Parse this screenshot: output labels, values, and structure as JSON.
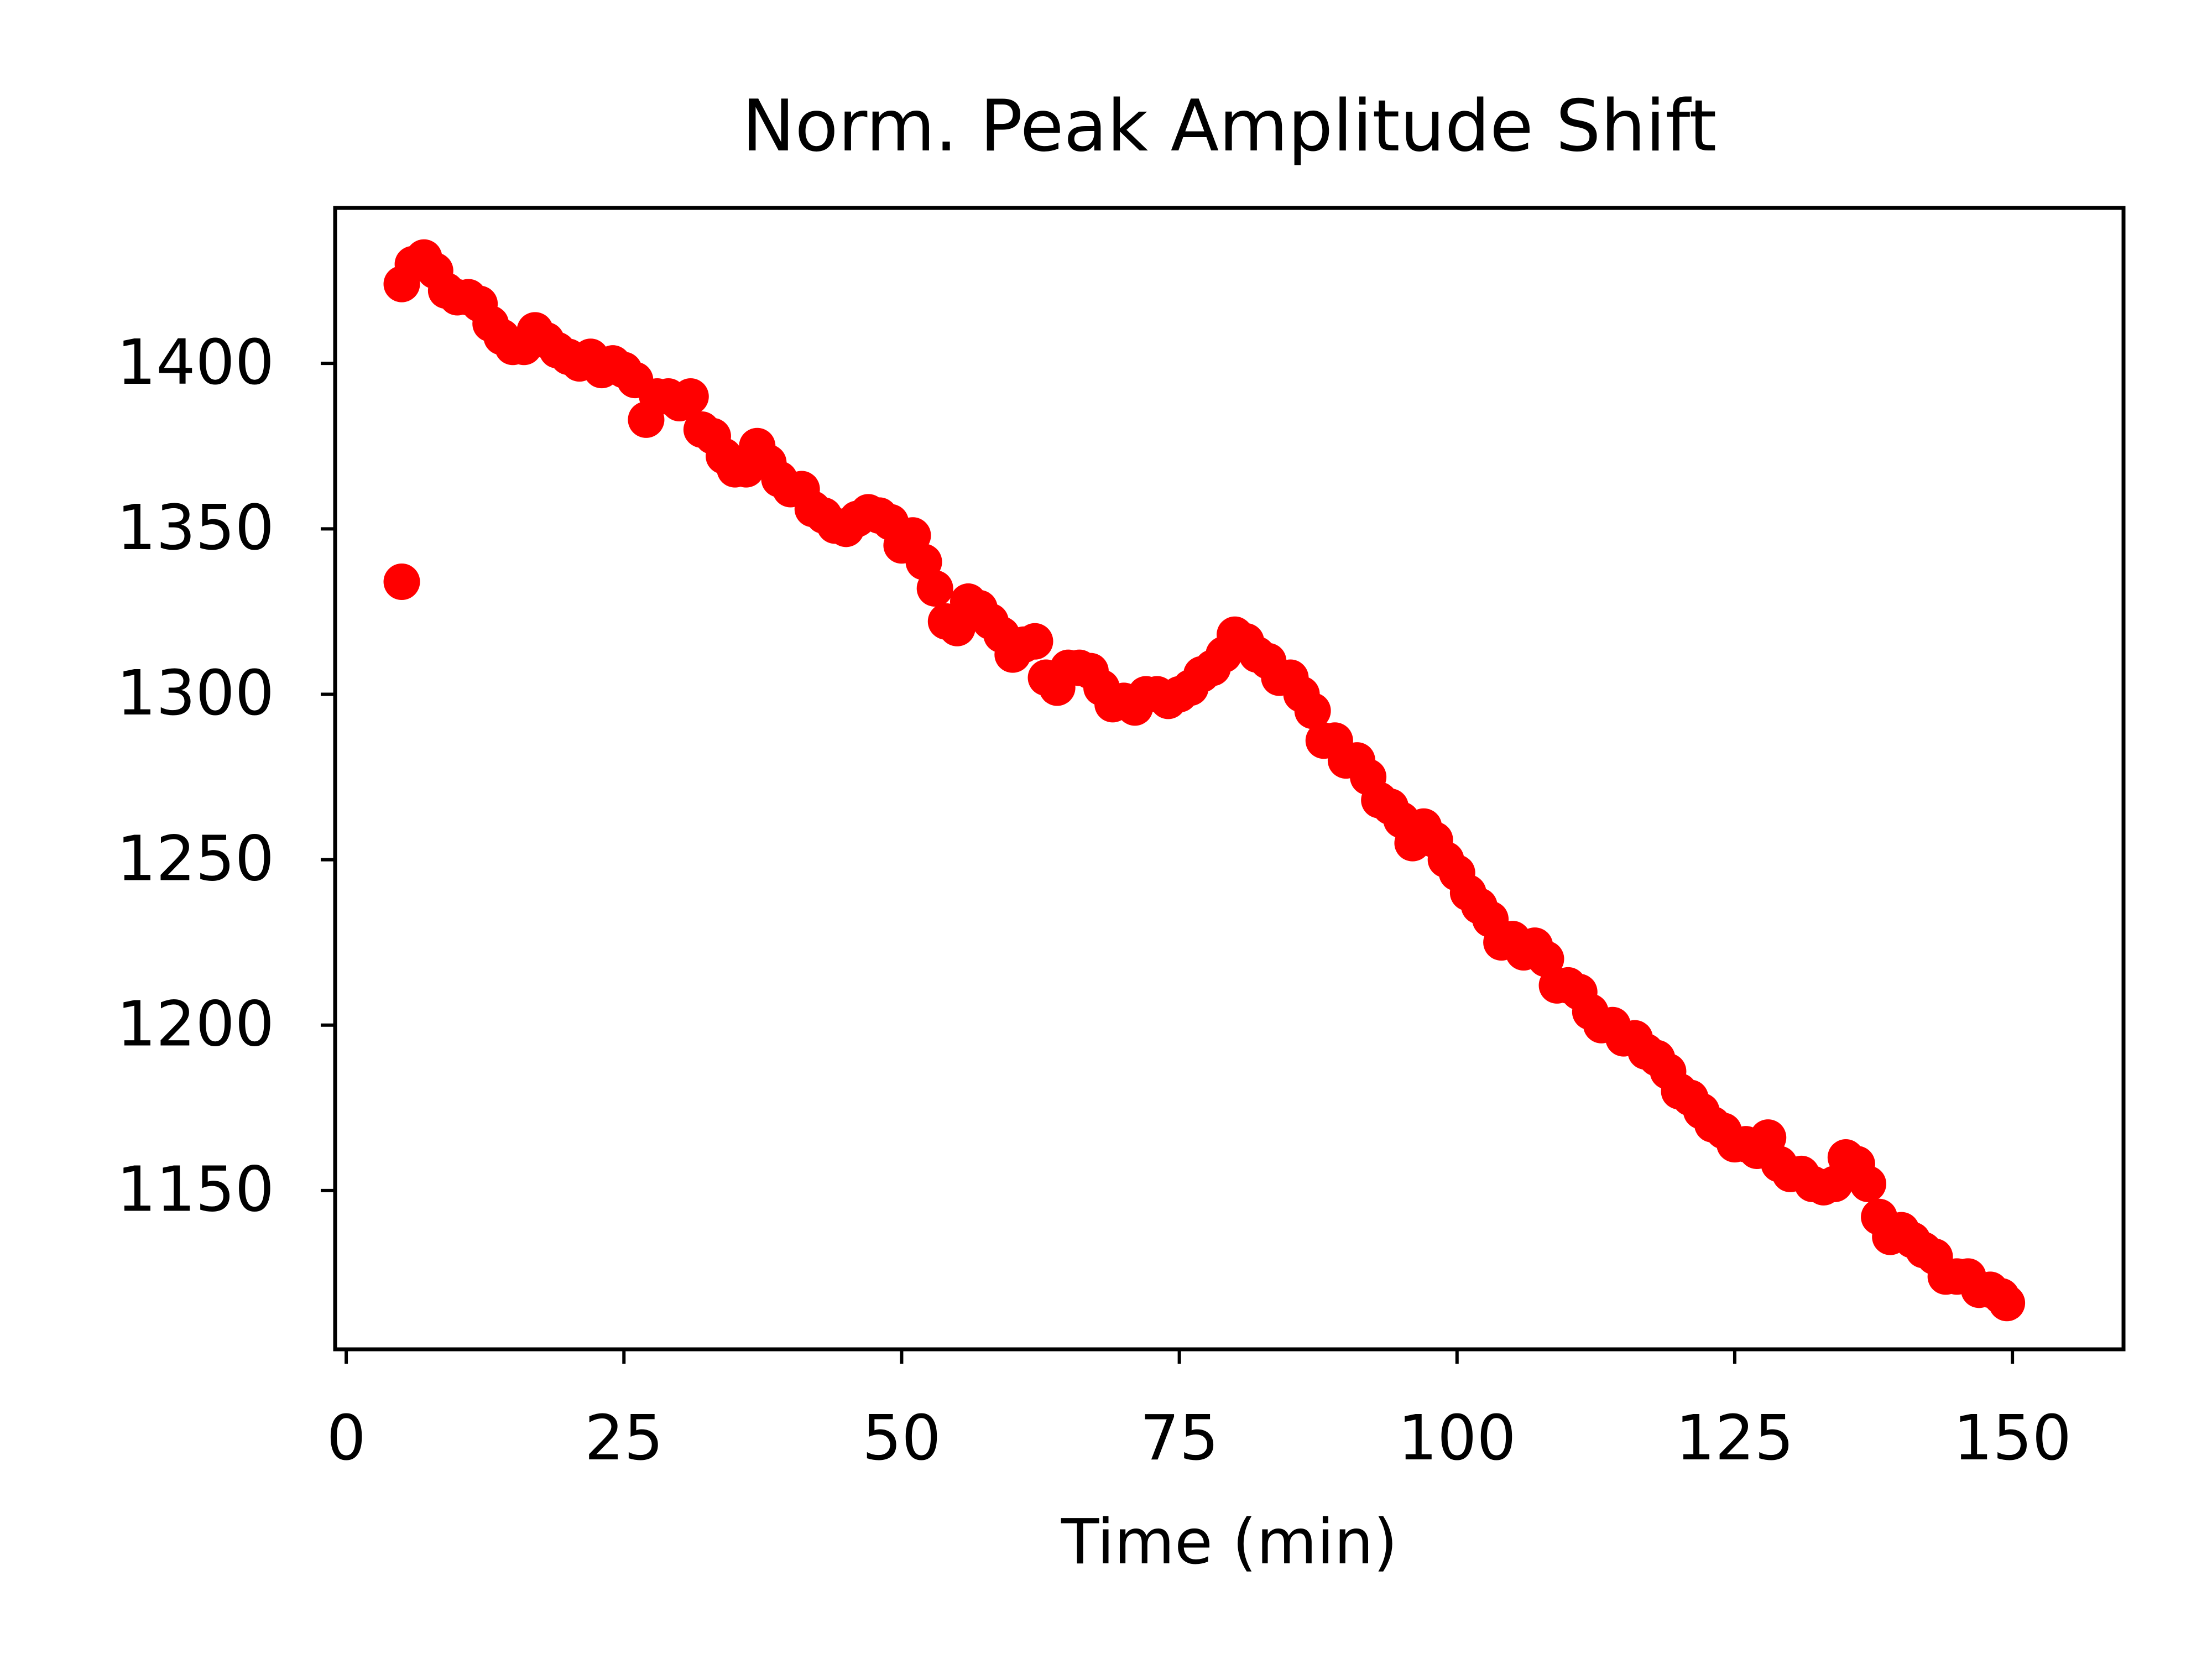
{
  "chart_data": {
    "type": "scatter",
    "title": "Norm. Peak Amplitude Shift",
    "xlabel": "Time (min)",
    "color": "#ff0000",
    "xlim": [
      -1,
      160
    ],
    "ylim": [
      1102,
      1447
    ],
    "xticks": [
      0,
      25,
      50,
      75,
      100,
      125,
      150
    ],
    "yticks": [
      1150,
      1200,
      1250,
      1300,
      1350,
      1400
    ],
    "x": [
      5,
      5,
      6,
      7,
      8,
      9,
      10,
      11,
      12,
      13,
      14,
      15,
      16,
      17,
      18,
      19,
      20,
      21,
      22,
      23,
      24,
      25,
      26,
      27,
      28,
      29,
      30,
      31,
      32,
      33,
      34,
      35,
      36,
      37,
      38,
      39,
      40,
      41,
      42,
      43,
      44,
      45,
      46,
      47,
      48,
      49,
      50,
      51,
      52,
      53,
      54,
      55,
      56,
      57,
      58,
      59,
      60,
      61,
      62,
      63,
      64,
      65,
      66,
      67,
      68,
      69,
      70,
      71,
      72,
      73,
      74,
      75,
      76,
      77,
      78,
      79,
      80,
      81,
      82,
      83,
      84,
      85,
      86,
      87,
      88,
      89,
      90,
      91,
      92,
      93,
      94,
      95,
      96,
      97,
      98,
      99,
      100,
      101,
      102,
      103,
      104,
      105,
      106,
      107,
      108,
      109,
      110,
      111,
      112,
      113,
      114,
      115,
      116,
      117,
      118,
      119,
      120,
      121,
      122,
      123,
      124,
      125,
      126,
      127,
      128,
      129,
      130,
      131,
      132,
      133,
      134,
      135,
      136,
      137,
      138,
      139,
      140,
      141,
      142,
      143,
      144,
      145,
      146,
      147,
      148,
      149,
      149.5
    ],
    "values": [
      1334,
      1424,
      1430,
      1432,
      1428,
      1422,
      1420,
      1420,
      1418,
      1412,
      1408,
      1405,
      1405,
      1410,
      1407,
      1404,
      1402,
      1400,
      1402,
      1398,
      1400,
      1398,
      1395,
      1383,
      1390,
      1390,
      1388,
      1390,
      1380,
      1378,
      1372,
      1368,
      1368,
      1375,
      1370,
      1365,
      1362,
      1362,
      1356,
      1354,
      1351,
      1350,
      1353,
      1355,
      1354,
      1352,
      1345,
      1348,
      1340,
      1332,
      1322,
      1320,
      1328,
      1326,
      1322,
      1318,
      1312,
      1315,
      1316,
      1305,
      1302,
      1308,
      1308,
      1307,
      1302,
      1297,
      1298,
      1296,
      1300,
      1300,
      1298,
      1300,
      1302,
      1306,
      1308,
      1312,
      1318,
      1316,
      1312,
      1310,
      1305,
      1305,
      1300,
      1295,
      1286,
      1286,
      1280,
      1280,
      1275,
      1268,
      1266,
      1262,
      1255,
      1260,
      1256,
      1250,
      1246,
      1240,
      1236,
      1232,
      1225,
      1226,
      1222,
      1224,
      1220,
      1212,
      1212,
      1210,
      1204,
      1200,
      1200,
      1196,
      1196,
      1192,
      1190,
      1186,
      1180,
      1178,
      1174,
      1170,
      1168,
      1164,
      1164,
      1162,
      1166,
      1158,
      1155,
      1155,
      1152,
      1151,
      1152,
      1160,
      1158,
      1152,
      1142,
      1136,
      1138,
      1135,
      1132,
      1130,
      1124,
      1124,
      1124,
      1120,
      1120,
      1118,
      1116
    ]
  }
}
